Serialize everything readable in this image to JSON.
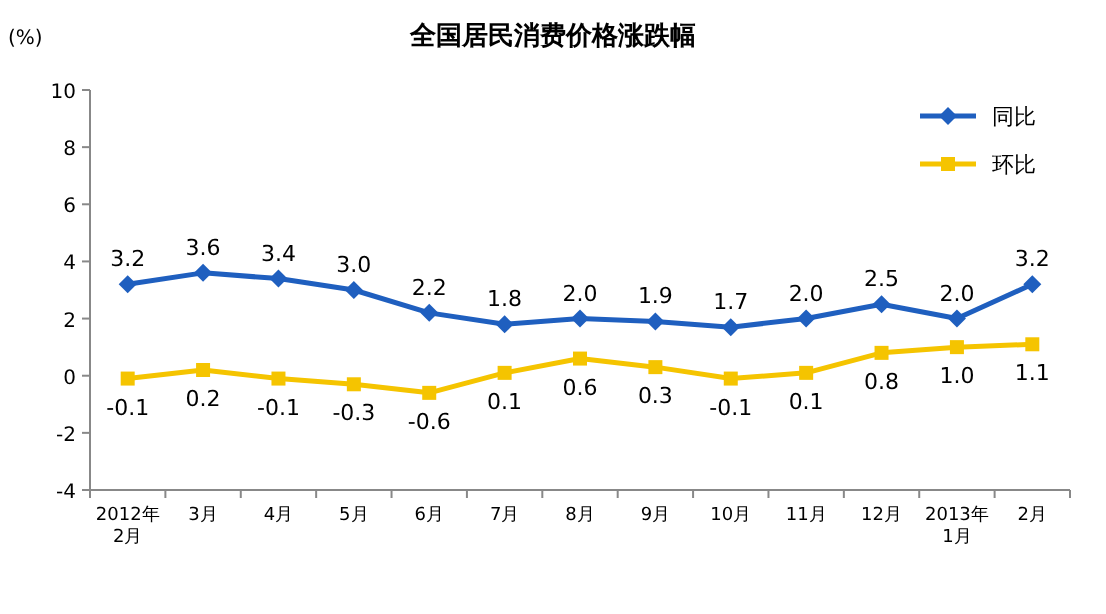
{
  "chart_data": {
    "type": "line",
    "title": "全国居民消费价格涨跌幅",
    "ylabel": "(%)",
    "categories": [
      "2012年\n2月",
      "3月",
      "4月",
      "5月",
      "6月",
      "7月",
      "8月",
      "9月",
      "10月",
      "11月",
      "12月",
      "2013年\n1月",
      "2月"
    ],
    "series": [
      {
        "name": "同比",
        "color": "#1f5fbf",
        "marker": "diamond",
        "values": [
          3.2,
          3.6,
          3.4,
          3.0,
          2.2,
          1.8,
          2.0,
          1.9,
          1.7,
          2.0,
          2.5,
          2.0,
          3.2
        ],
        "value_labels": [
          "3.2",
          "3.6",
          "3.4",
          "3.0",
          "2.2",
          "1.8",
          "2.0",
          "1.9",
          "1.7",
          "2.0",
          "2.5",
          "2.0",
          "3.2"
        ]
      },
      {
        "name": "环比",
        "color": "#f5c400",
        "marker": "square",
        "values": [
          -0.1,
          0.2,
          -0.1,
          -0.3,
          -0.6,
          0.1,
          0.6,
          0.3,
          -0.1,
          0.1,
          0.8,
          1.0,
          1.1
        ],
        "value_labels": [
          "-0.1",
          "0.2",
          "-0.1",
          "-0.3",
          "-0.6",
          "0.1",
          "0.6",
          "0.3",
          "-0.1",
          "0.1",
          "0.8",
          "1.0",
          "1.1"
        ]
      }
    ],
    "ylim": [
      -4,
      10
    ],
    "yticks": [
      -4,
      -2,
      0,
      2,
      4,
      6,
      8,
      10
    ],
    "legend": "top right",
    "grid": false,
    "line_style": "solid"
  }
}
